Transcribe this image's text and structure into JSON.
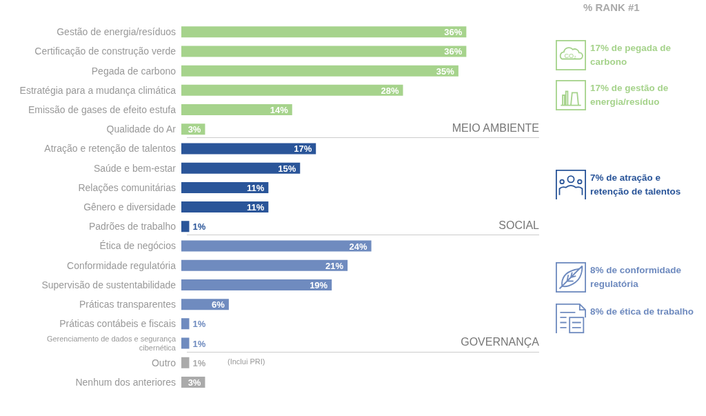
{
  "chart_data": {
    "type": "bar",
    "orientation": "horizontal",
    "categories": [
      "Gestão de energia/resíduos",
      "Certificação de construção verde",
      "Pegada de carbono",
      "Estratégia para a mudança climática",
      "Emissão de gases de efeito estufa",
      "Qualidade do Ar",
      "Atração e retenção de talentos",
      "Saúde e bem-estar",
      "Relações comunitárias",
      "Gênero e diversidade",
      "Padrões de trabalho",
      "Ética de negócios",
      "Conformidade regulatória",
      "Supervisão de sustentabilidade",
      "Práticas transparentes",
      "Práticas contábeis e fiscais",
      "Gerenciamento de dados e segurança cibernética",
      "Outro",
      "Nenhum dos anteriores"
    ],
    "values": [
      36,
      36,
      35,
      28,
      14,
      3,
      17,
      15,
      11,
      11,
      1,
      24,
      21,
      19,
      6,
      1,
      1,
      1,
      3
    ],
    "value_labels": [
      "36%",
      "36%",
      "35%",
      "28%",
      "14%",
      "3%",
      "17%",
      "15%",
      "11%",
      "11%",
      "1%",
      "24%",
      "21%",
      "19%",
      "6%",
      "1%",
      "1%",
      "1%",
      "3%"
    ],
    "colors": [
      "#a6d38c",
      "#a6d38c",
      "#a6d38c",
      "#a6d38c",
      "#a6d38c",
      "#a6d38c",
      "#2a5599",
      "#2a5599",
      "#2a5599",
      "#2a5599",
      "#2a5599",
      "#6f8bbf",
      "#6f8bbf",
      "#6f8bbf",
      "#6f8bbf",
      "#6f8bbf",
      "#6f8bbf",
      "#aaaaaa",
      "#aaaaaa"
    ],
    "annotations": [
      "MEIO AMBIENTE",
      "SOCIAL",
      "GOVERNANÇA",
      "(Inclui PRI)",
      "% RANK #1",
      "17% de pegada de carbono",
      "17% de gestão de energia/resíduo",
      "7% de atração e retenção de talentos",
      "8% de conformidade regulatória",
      "8% de ética de trabalho",
      "CO₂"
    ]
  }
}
